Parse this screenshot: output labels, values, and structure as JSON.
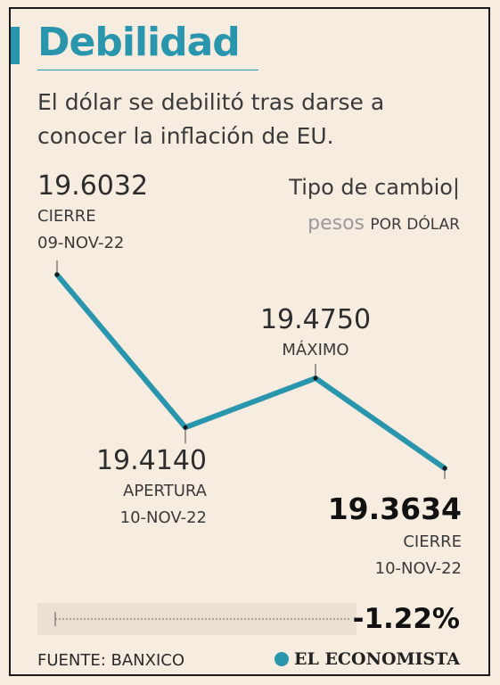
{
  "title": "Debilidad",
  "subtitle": "El dólar se debilitó tras darse a conocer la inflación de EU.",
  "unit": {
    "label": "Tipo de cambio|",
    "currency": "pesos",
    "per": "POR DÓLAR"
  },
  "change": "-1.22%",
  "source": "FUENTE: BANXICO",
  "brand": "EL ECONOMISTA",
  "colors": {
    "accent": "#2a96ad",
    "background": "#f6ece0"
  },
  "chart_data": {
    "type": "line",
    "series": [
      {
        "values": [
          19.6032,
          19.414,
          19.475,
          19.3634
        ]
      }
    ],
    "points": [
      {
        "value": 19.6032,
        "value_text": "19.6032",
        "label": "CIERRE",
        "date": "09-NOV-22"
      },
      {
        "value": 19.414,
        "value_text": "19.4140",
        "label": "APERTURA",
        "date": "10-NOV-22"
      },
      {
        "value": 19.475,
        "value_text": "19.4750",
        "label": "MÁXIMO",
        "date": ""
      },
      {
        "value": 19.3634,
        "value_text": "19.3634",
        "label": "CIERRE",
        "date": "10-NOV-22"
      }
    ],
    "ylim": [
      19.3634,
      19.6032
    ],
    "grid": false
  }
}
